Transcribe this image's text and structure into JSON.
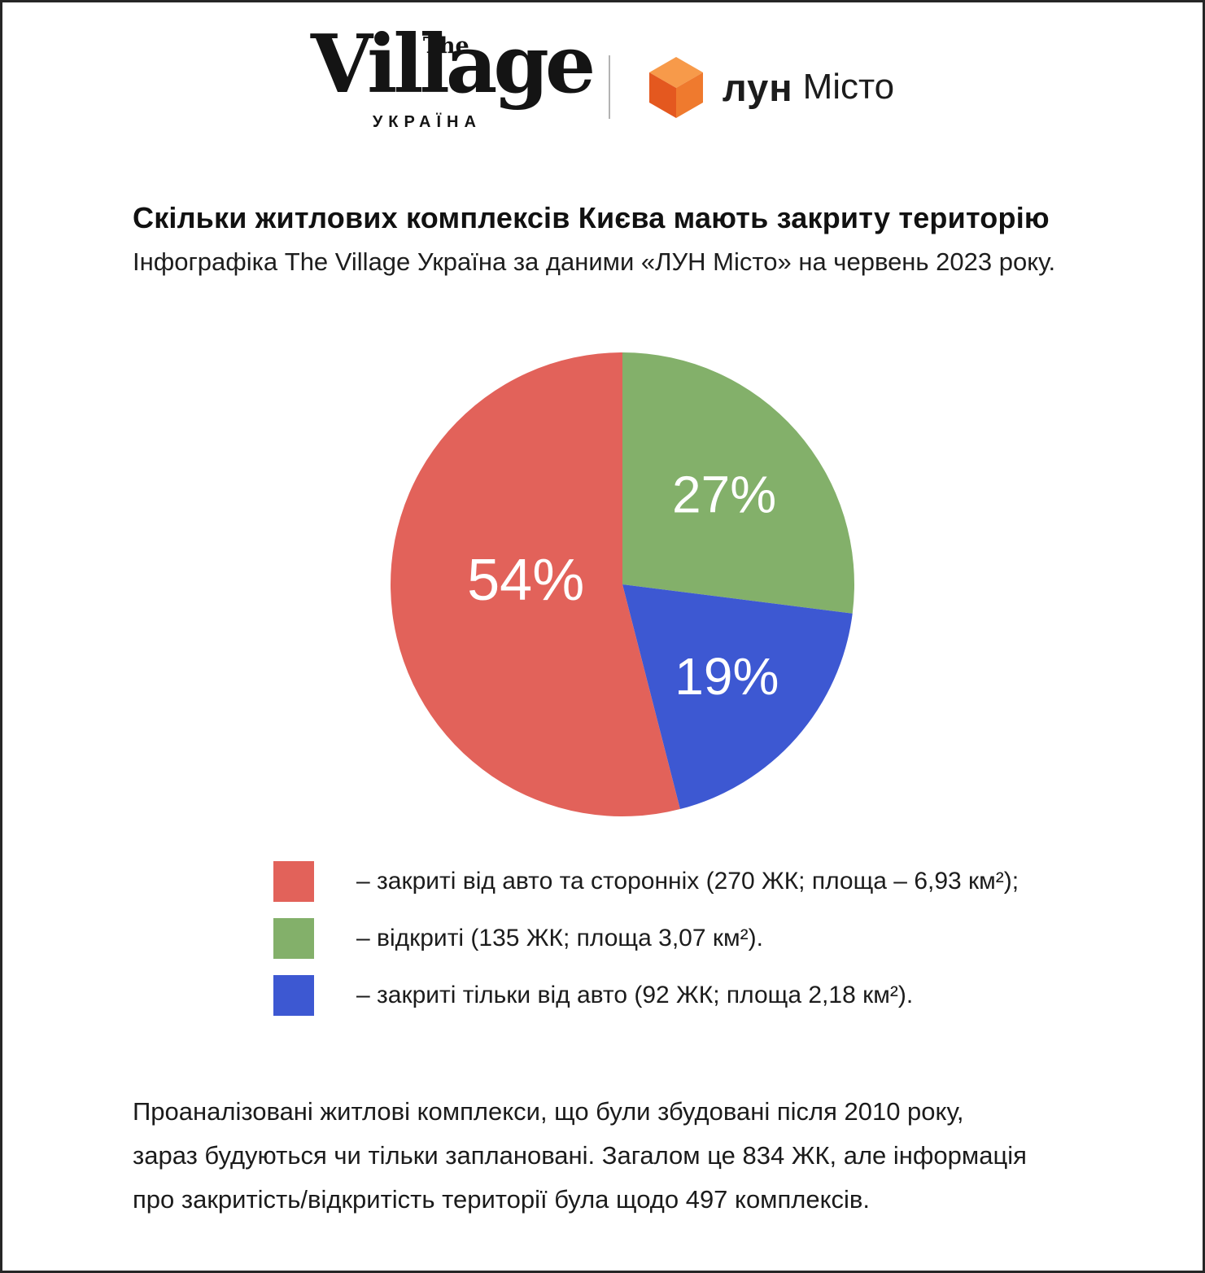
{
  "header": {
    "village_logo": {
      "the": "The",
      "word": "Village",
      "country": "УКРАЇНА"
    },
    "lun_logo": {
      "name": "лун",
      "suffix": "Місто",
      "cube_colors": {
        "top": "#F79A4A",
        "left": "#E4581F",
        "right": "#EF7A2E"
      }
    }
  },
  "title": "Скільки житлових комплексів Києва мають закриту територію",
  "subtitle": "Інфографіка The Village Україна за даними «ЛУН Місто» на червень 2023 року.",
  "chart_data": {
    "type": "pie",
    "title": "Скільки житлових комплексів Києва мають закриту територію",
    "start_angle_deg": 0,
    "direction": "clockwise",
    "categories": [
      "закриті від авто та сторонніх",
      "відкриті",
      "закриті тільки від авто"
    ],
    "values": [
      54,
      27,
      19
    ],
    "counts_zhk": [
      270,
      135,
      92
    ],
    "areas_km2": [
      "6,93",
      "3,07",
      "2,18"
    ],
    "legend_position": "below",
    "slices": [
      {
        "name": "відкриті",
        "value_pct": 27,
        "count_zhk": 135,
        "area_km2": "3,07",
        "color": "#83B06A",
        "pct_label": "27%",
        "label_r_frac": 0.585,
        "label_dy": 0,
        "label_font_px": 64
      },
      {
        "name": "закриті тільки від авто",
        "value_pct": 19,
        "count_zhk": 92,
        "area_km2": "2,18",
        "color": "#3D58D2",
        "pct_label": "19%",
        "label_r_frac": 0.6,
        "label_dy": 0,
        "label_font_px": 64
      },
      {
        "name": "закриті від авто та сторонніх",
        "value_pct": 54,
        "count_zhk": 270,
        "area_km2": "6,93",
        "color": "#E2625A",
        "pct_label": "54%",
        "label_r_frac": 0.42,
        "label_dy": -20,
        "label_font_px": 72
      }
    ]
  },
  "legend": {
    "items": [
      {
        "color": "#E2625A",
        "text": "– закриті від авто та сторонніх (270 ЖК; площа – 6,93 км²);"
      },
      {
        "color": "#83B06A",
        "text": "– відкриті (135 ЖК; площа 3,07 км²)."
      },
      {
        "color": "#3D58D2",
        "text": "– закриті тільки від авто (92 ЖК; площа 2,18 км²)."
      }
    ]
  },
  "footer": {
    "lines": [
      "Проаналізовані житлові комплекси, що були збудовані після 2010 року,",
      "зараз будуються чи тільки заплановані. Загалом це 834 ЖК, але інформація",
      "про закритість/відкритість території була щодо 497 комплексів."
    ]
  }
}
